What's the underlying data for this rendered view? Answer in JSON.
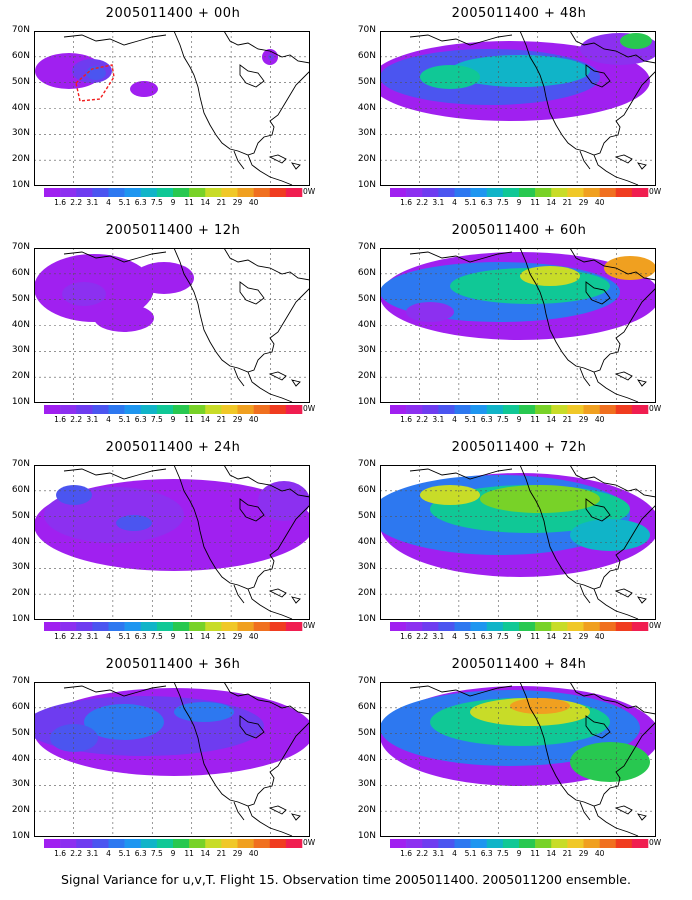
{
  "panels": [
    {
      "title": "2005011400 + 00h",
      "lead": "00h"
    },
    {
      "title": "2005011400 + 48h",
      "lead": "48h"
    },
    {
      "title": "2005011400 + 12h",
      "lead": "12h"
    },
    {
      "title": "2005011400 + 60h",
      "lead": "60h"
    },
    {
      "title": "2005011400 + 24h",
      "lead": "24h"
    },
    {
      "title": "2005011400 + 72h",
      "lead": "72h"
    },
    {
      "title": "2005011400 + 36h",
      "lead": "36h"
    },
    {
      "title": "2005011400 + 84h",
      "lead": "84h"
    }
  ],
  "lat_labels": [
    "70N",
    "60N",
    "50N",
    "40N",
    "30N",
    "20N",
    "10N"
  ],
  "colorbar": {
    "labels": [
      "1.6",
      "2.2",
      "3.1",
      "4",
      "5.1",
      "6.3",
      "7.5",
      "9",
      "11",
      "14",
      "21",
      "29",
      "40"
    ],
    "colors": [
      "#a020f0",
      "#8c30f0",
      "#6e3cf0",
      "#4b55f0",
      "#2d78f0",
      "#1e96f0",
      "#10b4c8",
      "#10c896",
      "#28c850",
      "#78d228",
      "#c8dc28",
      "#f0c828",
      "#f0a020",
      "#f07020",
      "#f03c20",
      "#f01e50"
    ],
    "trailing_label": "0W"
  },
  "footer": "Signal Variance for u,v,T. Flight 15. Observation time 2005011400. 2005011200 ensemble."
}
